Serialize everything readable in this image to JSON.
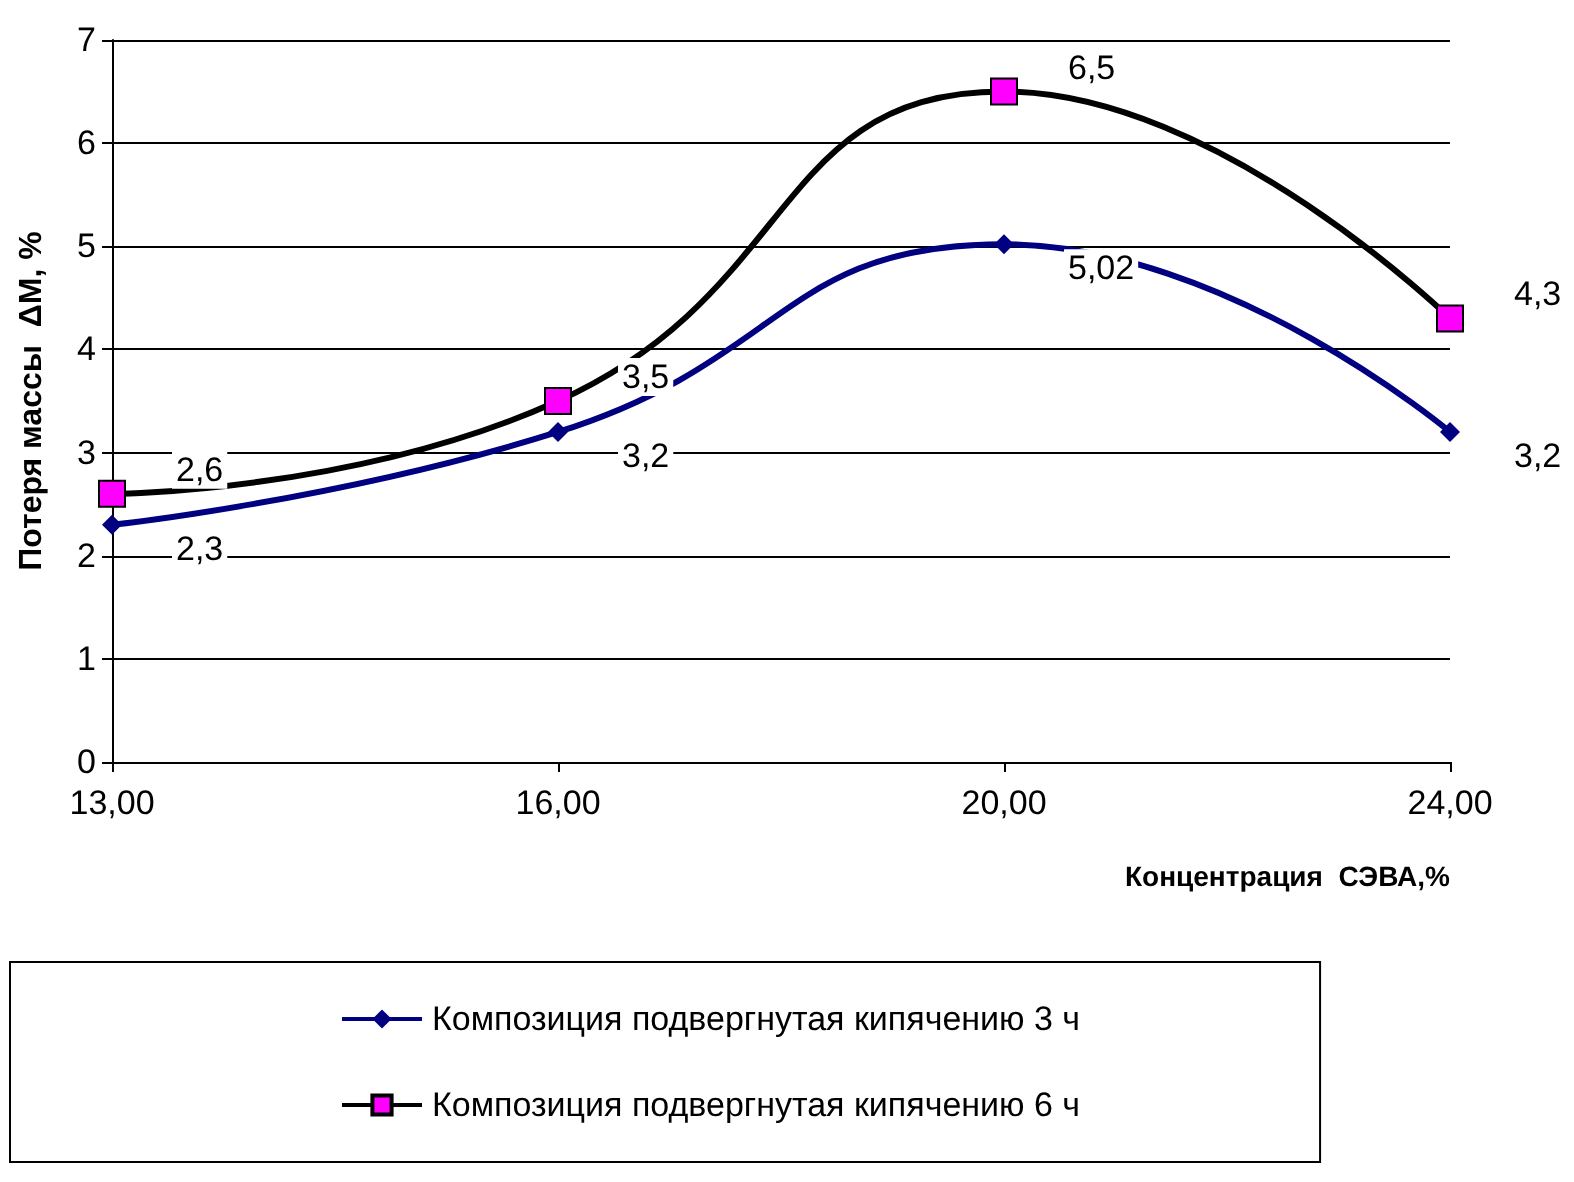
{
  "chart_data": {
    "type": "line",
    "xlabel": "Концентрация  СЭВА,%",
    "ylabel": "Потеря массы  ΔM, %",
    "categories": [
      "13,00",
      "16,00",
      "20,00",
      "24,00"
    ],
    "series": [
      {
        "name": "Композиция подвергнутая кипячению 3 ч",
        "color": "#000080",
        "marker": "diamond",
        "values": [
          2.3,
          3.2,
          5.02,
          3.2
        ],
        "value_labels": [
          "2,3",
          "3,2",
          "5,02",
          "3,2"
        ]
      },
      {
        "name": "Композиция подвергнутая кипячению 6 ч",
        "color": "#000000",
        "colors": [
          "#ff00ff",
          "#ff00ff",
          "#ff00ff",
          "#ff00ff"
        ],
        "marker": "square",
        "values": [
          2.6,
          3.5,
          6.5,
          4.3
        ],
        "value_labels": [
          "2,6",
          "3,5",
          "6,5",
          "4,3"
        ]
      }
    ],
    "ylim": [
      0,
      7
    ],
    "yticks": [
      0,
      1,
      2,
      3,
      4,
      5,
      6,
      7
    ],
    "grid": "y",
    "legend": "bottom"
  }
}
